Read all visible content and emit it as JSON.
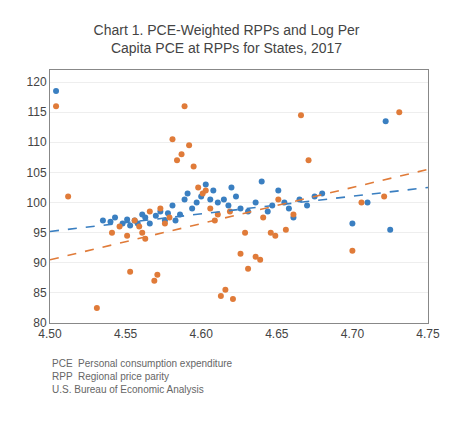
{
  "chart_data": {
    "type": "scatter",
    "title": "Chart 1. PCE-Weighted RPPs and Log Per\nCapita PCE at RPPs for States, 2017",
    "annotations": [
      "PCE  Personal consumption expenditure",
      "RPP  Regional price parity",
      "U.S. Bureau of Economic Analysis"
    ],
    "xlim": [
      4.5,
      4.75
    ],
    "ylim": [
      80,
      122
    ],
    "xticks": [
      {
        "value": 4.5,
        "label": "4.50"
      },
      4.55,
      {
        "value": 4.6,
        "label": "4.60"
      },
      4.65,
      {
        "value": 4.7,
        "label": "4.70"
      },
      4.75
    ],
    "yticks": [
      80,
      85,
      90,
      95,
      100,
      105,
      110,
      115,
      120
    ],
    "grid": "y",
    "series": [
      {
        "type": "scatter",
        "marker": "circle",
        "color": "#3a7fc1",
        "x": [
          4.504,
          4.535,
          4.54,
          4.543,
          4.548,
          4.551,
          4.553,
          4.556,
          4.558,
          4.561,
          4.563,
          4.566,
          4.57,
          4.573,
          4.576,
          4.578,
          4.581,
          4.583,
          4.586,
          4.589,
          4.591,
          4.594,
          4.597,
          4.6,
          4.603,
          4.606,
          4.608,
          4.611,
          4.615,
          4.618,
          4.62,
          4.623,
          4.626,
          4.631,
          4.636,
          4.64,
          4.644,
          4.647,
          4.651,
          4.655,
          4.658,
          4.661,
          4.665,
          4.67,
          4.675,
          4.68,
          4.7,
          4.71,
          4.722,
          4.725
        ],
        "values": [
          118.5,
          97.0,
          96.8,
          97.5,
          96.5,
          97.2,
          96.2,
          97.0,
          96.5,
          98.0,
          97.5,
          96.5,
          97.8,
          98.5,
          97.0,
          98.2,
          99.5,
          97.0,
          98.0,
          100.5,
          101.5,
          99.0,
          100.0,
          101.0,
          103.0,
          100.5,
          102.0,
          100.0,
          100.5,
          99.5,
          102.5,
          101.0,
          99.0,
          98.5,
          100.0,
          103.5,
          98.5,
          99.5,
          102.0,
          100.0,
          99.0,
          97.5,
          100.5,
          99.5,
          101.0,
          101.5,
          96.5,
          100.0,
          113.5,
          95.5
        ]
      },
      {
        "type": "scatter",
        "marker": "circle",
        "color": "#e07b39",
        "x": [
          4.504,
          4.512,
          4.531,
          4.541,
          4.546,
          4.551,
          4.553,
          4.556,
          4.559,
          4.561,
          4.563,
          4.566,
          4.569,
          4.571,
          4.573,
          4.576,
          4.579,
          4.581,
          4.584,
          4.587,
          4.589,
          4.592,
          4.595,
          4.598,
          4.601,
          4.603,
          4.606,
          4.609,
          4.611,
          4.613,
          4.616,
          4.619,
          4.621,
          4.626,
          4.629,
          4.631,
          4.636,
          4.639,
          4.641,
          4.646,
          4.649,
          4.651,
          4.656,
          4.661,
          4.666,
          4.671,
          4.7,
          4.706,
          4.721,
          4.731
        ],
        "values": [
          116.0,
          101.0,
          82.5,
          95.0,
          96.0,
          94.5,
          88.5,
          97.0,
          96.0,
          95.0,
          94.0,
          98.5,
          87.0,
          88.0,
          99.0,
          96.5,
          97.5,
          110.5,
          107.0,
          108.0,
          116.0,
          109.5,
          106.0,
          102.5,
          101.5,
          102.0,
          99.0,
          97.0,
          98.0,
          84.5,
          85.5,
          98.5,
          84.0,
          91.5,
          95.0,
          89.0,
          91.0,
          90.5,
          97.5,
          95.0,
          94.5,
          100.5,
          95.5,
          98.0,
          114.5,
          107.0,
          92.0,
          100.0,
          101.0,
          115.0
        ]
      },
      {
        "type": "line",
        "line_style": "dashed",
        "color": "#3a7fc1",
        "x": [
          4.5,
          4.75
        ],
        "values": [
          95.2,
          102.5
        ]
      },
      {
        "type": "line",
        "line_style": "dashed",
        "color": "#e07b39",
        "x": [
          4.5,
          4.75
        ],
        "values": [
          90.5,
          105.5
        ]
      }
    ]
  }
}
